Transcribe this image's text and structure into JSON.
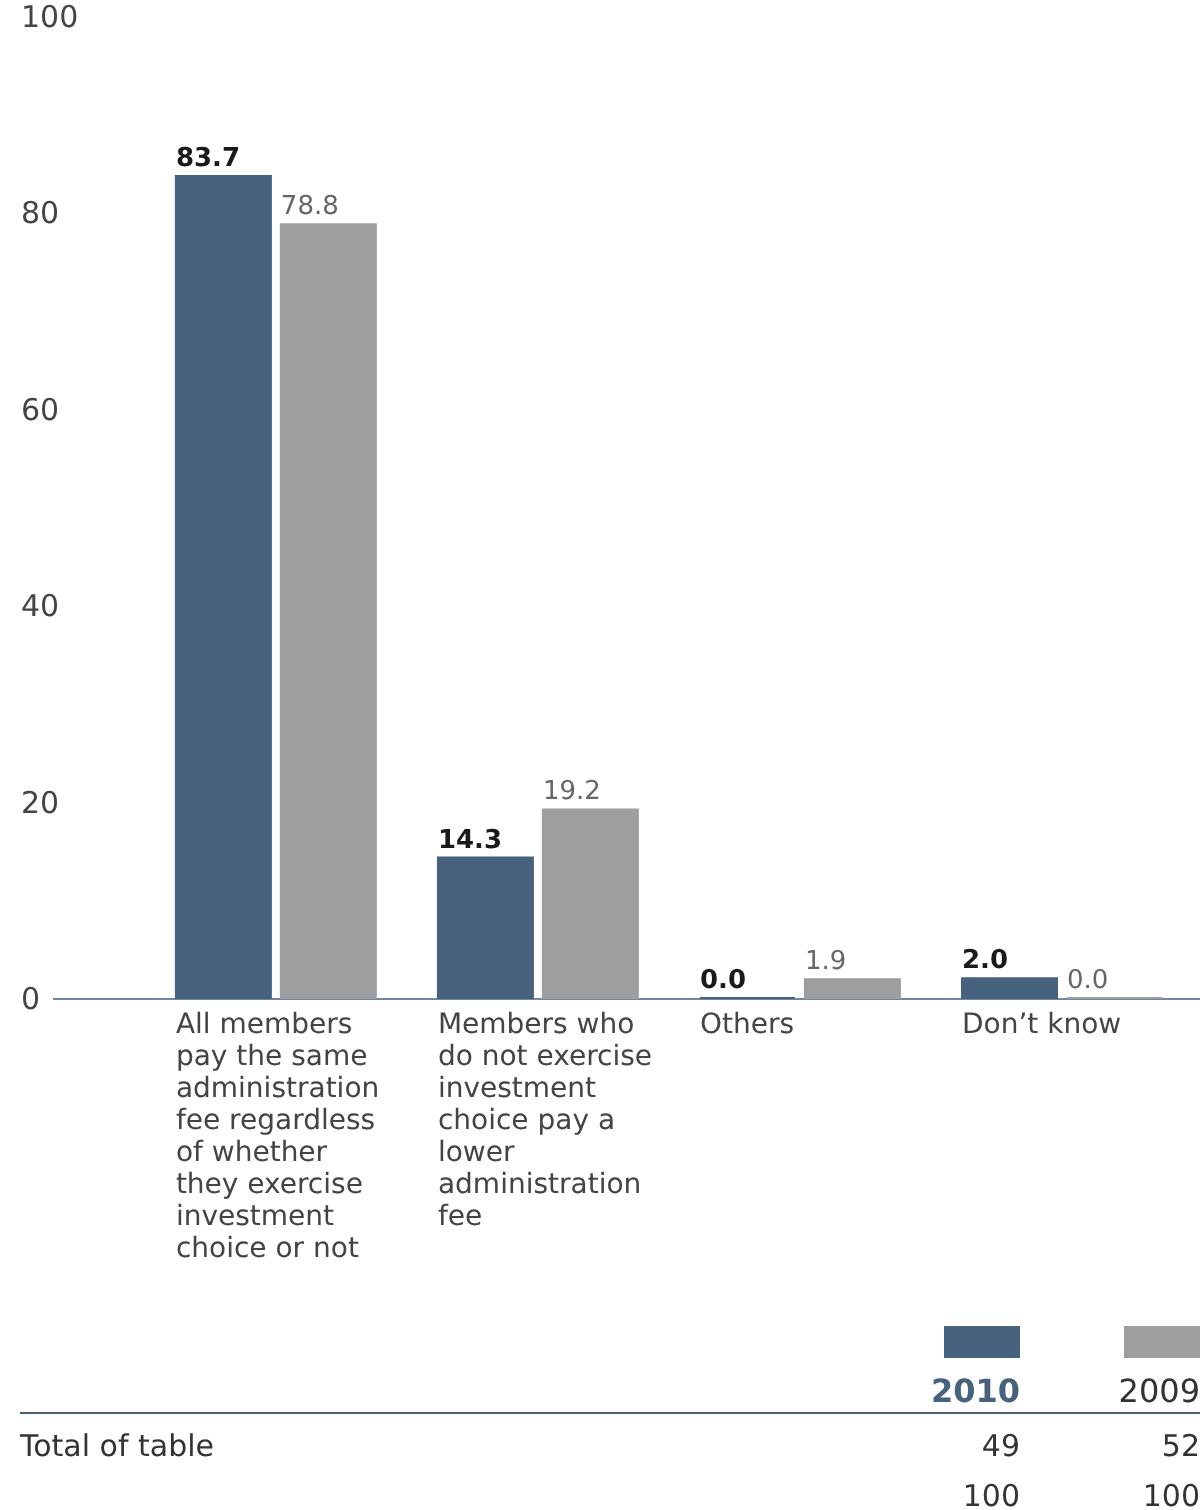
{
  "chart_data": {
    "type": "bar",
    "categories": [
      "All members\npay the same\nadministration\nfee regardless\nof whether\nthey exercise\ninvestment\nchoice or not",
      "Members who\ndo not exercise\ninvestment\nchoice pay a\nlower\nadministration\nfee",
      "Others",
      "Don’t know"
    ],
    "series": [
      {
        "name": "2010",
        "color": "#46627c",
        "values": [
          83.7,
          14.3,
          0.0,
          2.0
        ],
        "value_labels": [
          "83.7",
          "14.3",
          "0.0",
          "2.0"
        ]
      },
      {
        "name": "2009",
        "color": "#9d9ea0",
        "values": [
          78.8,
          19.2,
          1.9,
          0.0
        ],
        "value_labels": [
          "78.8",
          "19.2",
          "1.9",
          "0.0"
        ]
      }
    ],
    "ylim": [
      0,
      100
    ],
    "yticks": [
      0,
      20,
      40,
      60,
      80,
      100
    ],
    "grid": false,
    "legend": "bottom right",
    "annotations": [
      "Total of table",
      "49",
      "52",
      "100",
      "100"
    ]
  }
}
